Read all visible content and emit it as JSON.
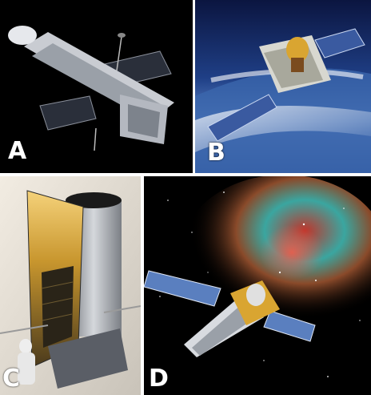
{
  "panels": [
    {
      "id": "A",
      "label": "A",
      "subject": "hubble-telescope"
    },
    {
      "id": "B",
      "label": "B",
      "subject": "satellite-over-earth"
    },
    {
      "id": "C",
      "label": "C",
      "subject": "telescope-in-clean-room"
    },
    {
      "id": "D",
      "label": "D",
      "subject": "space-telescope-with-nebula"
    }
  ],
  "colors": {
    "space_black": "#000000",
    "earth_blue": "#2f5fa8",
    "solar_panel_blue": "#3a5aa0",
    "foil_silver": "#c8ccd2",
    "nebula_teal": "#3aa6a0",
    "nebula_red": "#c0342a",
    "gold_foil": "#d9a531"
  }
}
